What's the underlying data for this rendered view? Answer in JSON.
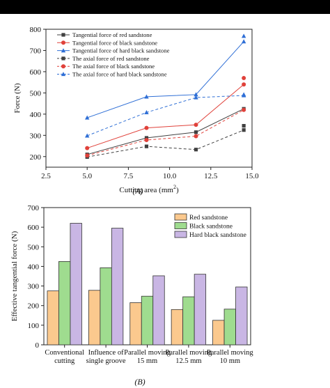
{
  "colors": {
    "red_sandstone_line": "#404040",
    "black_sandstone_line": "#e0413a",
    "hard_black_sandstone_line": "#2f6fd6",
    "bar_red_sandstone": "#fbc98e",
    "bar_black_sandstone": "#9fdc8f",
    "bar_hard_black_sandstone": "#c9b6e4"
  },
  "chart_data": [
    {
      "type": "line",
      "caption": "(A)",
      "xlabel": "Cutting area (mm",
      "xlabel_sup": "2",
      "xlabel_end": ")",
      "ylabel": "Force (N)",
      "xlim": [
        2.5,
        15.0
      ],
      "ylim": [
        150,
        800
      ],
      "xticks": [
        "2.5",
        "5.0",
        "7.5",
        "10.0",
        "12.5",
        "15.0"
      ],
      "yticks": [
        "200",
        "300",
        "400",
        "500",
        "600",
        "700",
        "800"
      ],
      "legend_position": "top-left",
      "series": [
        {
          "name": "Tangential force of red sandstone",
          "style": "solid",
          "marker": "square",
          "color": "#404040",
          "x": [
            5.0,
            8.6,
            11.6,
            14.5
          ],
          "y": [
            210,
            288,
            315,
            425
          ]
        },
        {
          "name": "Tangential force of black sandstone",
          "style": "solid",
          "marker": "circle",
          "color": "#e0413a",
          "x": [
            5.0,
            8.6,
            11.6,
            14.5
          ],
          "y": [
            240,
            335,
            350,
            540
          ]
        },
        {
          "name": "Tangential force of hard black sandstone",
          "style": "solid",
          "marker": "triangle",
          "color": "#2f6fd6",
          "x": [
            5.0,
            8.6,
            11.6,
            14.5
          ],
          "y": [
            383,
            482,
            492,
            742
          ]
        },
        {
          "name": "The axial force of red sandstone",
          "style": "dashed",
          "marker": "square",
          "color": "#404040",
          "x": [
            5.0,
            8.6,
            11.6,
            14.5
          ],
          "y": [
            198,
            248,
            233,
            325
          ]
        },
        {
          "name": "The axial force of black sandstone",
          "style": "dashed",
          "marker": "circle",
          "color": "#e0413a",
          "x": [
            5.0,
            8.6,
            11.6,
            14.5
          ],
          "y": [
            205,
            278,
            296,
            420
          ]
        },
        {
          "name": "The axial force of hard black sandstone",
          "style": "dashed",
          "marker": "triangle",
          "color": "#2f6fd6",
          "x": [
            5.0,
            8.6,
            11.6,
            14.5
          ],
          "y": [
            298,
            408,
            478,
            488
          ]
        }
      ],
      "extra_points": [
        {
          "series": 2,
          "x": 14.5,
          "y": 768
        },
        {
          "series": 1,
          "x": 14.5,
          "y": 570
        },
        {
          "series": 5,
          "x": 14.5,
          "y": 492
        },
        {
          "series": 0,
          "x": 14.5,
          "y": 345
        }
      ]
    },
    {
      "type": "bar",
      "caption": "(B)",
      "ylabel": "Effective tangential force (N)",
      "ylim": [
        0,
        700
      ],
      "yticks": [
        "0",
        "100",
        "200",
        "300",
        "400",
        "500",
        "600",
        "700"
      ],
      "categories": [
        [
          "Conventional",
          "cutting"
        ],
        [
          "Influence of",
          "single groove"
        ],
        [
          "Parallel moving",
          "15 mm"
        ],
        [
          "Parallel moving",
          "12.5 mm"
        ],
        [
          "Parallel moving",
          "10 mm"
        ]
      ],
      "legend_position": "top-right",
      "series": [
        {
          "name": "Red sandstone",
          "color": "#fbc98e",
          "values": [
            275,
            278,
            215,
            180,
            125
          ]
        },
        {
          "name": "Black sandstone",
          "color": "#9fdc8f",
          "values": [
            425,
            393,
            248,
            245,
            182
          ]
        },
        {
          "name": "Hard black sandstone",
          "color": "#c9b6e4",
          "values": [
            620,
            595,
            352,
            360,
            295
          ]
        }
      ]
    }
  ]
}
